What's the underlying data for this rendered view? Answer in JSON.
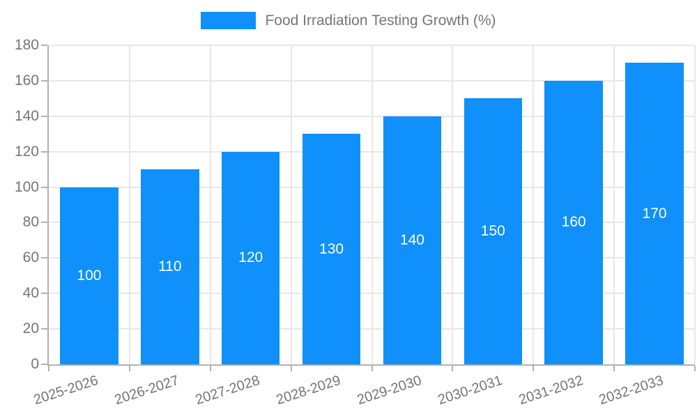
{
  "legend": {
    "label": "Food Irradiation Testing Growth (%)"
  },
  "colors": {
    "bar": "#0f90fa",
    "grid": "#e7e7e7",
    "axis": "#b1b1b1",
    "tick_text": "#757575",
    "data_label": "#ffffff"
  },
  "chart_data": {
    "type": "bar",
    "title": "Food Irradiation Testing Growth (%)",
    "categories": [
      "2025-2026",
      "2026-2027",
      "2027-2028",
      "2028-2029",
      "2029-2030",
      "2030-2031",
      "2031-2032",
      "2032-2033"
    ],
    "values": [
      100,
      110,
      120,
      130,
      140,
      150,
      160,
      170
    ],
    "xlabel": "",
    "ylabel": "",
    "ylim": [
      0,
      180
    ],
    "ytick_step": 20,
    "yticks": [
      0,
      20,
      40,
      60,
      80,
      100,
      120,
      140,
      160,
      180
    ],
    "grid": true,
    "legend_position": "top-center",
    "data_labels": "inside-center",
    "bar_color": "#0f90fa"
  }
}
